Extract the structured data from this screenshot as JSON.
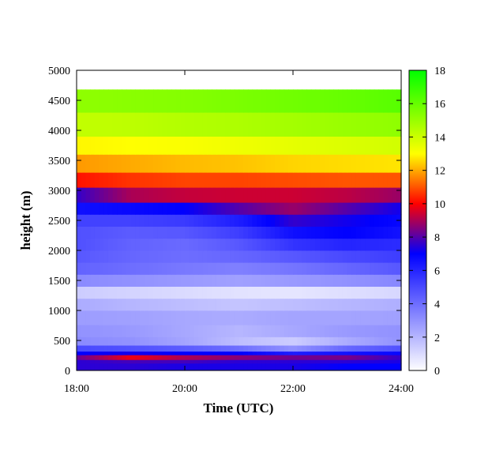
{
  "chart_data": {
    "type": "heatmap",
    "title": "",
    "xlabel": "Time (UTC)",
    "ylabel": "height (m)",
    "x_ticks": [
      "18:00",
      "20:00",
      "22:00",
      "24:00"
    ],
    "y_ticks": [
      "0",
      "500",
      "1000",
      "1500",
      "2000",
      "2500",
      "3000",
      "3500",
      "4000",
      "4500",
      "5000"
    ],
    "xlim": [
      "18:00",
      "24:00"
    ],
    "ylim": [
      0,
      5000
    ],
    "colorbar": {
      "range": [
        0,
        18
      ],
      "ticks": [
        "0",
        "2",
        "4",
        "6",
        "8",
        "10",
        "12",
        "14",
        "16",
        "18"
      ],
      "stops": [
        {
          "value": 0,
          "color": "#ffffff"
        },
        {
          "value": 7,
          "color": "#0000ff"
        },
        {
          "value": 10,
          "color": "#ff0000"
        },
        {
          "value": 13,
          "color": "#ffff00"
        },
        {
          "value": 18,
          "color": "#00ff00"
        }
      ]
    },
    "times": [
      "18:00",
      "19:00",
      "20:00",
      "21:00",
      "22:00",
      "23:00",
      "24:00"
    ],
    "layers": [
      {
        "height": [
          0,
          120
        ],
        "values": [
          7.5,
          7.5,
          7.3,
          7.3,
          7.3,
          7.0,
          7.0
        ]
      },
      {
        "height": [
          120,
          180
        ],
        "values": [
          7.5,
          7.8,
          7.8,
          7.5,
          7.5,
          7.5,
          7.3
        ]
      },
      {
        "height": [
          180,
          260
        ],
        "values": [
          8.2,
          9.8,
          9.0,
          8.6,
          8.3,
          8.4,
          7.6
        ]
      },
      {
        "height": [
          260,
          320
        ],
        "values": [
          7.0,
          7.2,
          7.0,
          7.0,
          6.2,
          6.5,
          6.8
        ]
      },
      {
        "height": [
          320,
          420
        ],
        "values": [
          5.0,
          4.8,
          4.5,
          4.0,
          3.0,
          4.2,
          4.8
        ]
      },
      {
        "height": [
          420,
          560
        ],
        "values": [
          3.2,
          3.0,
          2.5,
          1.8,
          1.4,
          2.3,
          3.0
        ]
      },
      {
        "height": [
          560,
          760
        ],
        "values": [
          3.0,
          2.8,
          2.4,
          2.0,
          2.4,
          2.8,
          3.0
        ]
      },
      {
        "height": [
          760,
          1000
        ],
        "values": [
          2.7,
          2.6,
          2.4,
          2.3,
          2.5,
          2.5,
          2.6
        ]
      },
      {
        "height": [
          1000,
          1200
        ],
        "values": [
          2.3,
          2.0,
          1.8,
          1.6,
          1.8,
          2.0,
          2.2
        ]
      },
      {
        "height": [
          1200,
          1400
        ],
        "values": [
          1.4,
          1.2,
          1.0,
          0.8,
          0.7,
          0.9,
          1.1
        ]
      },
      {
        "height": [
          1400,
          1600
        ],
        "values": [
          3.2,
          3.0,
          2.8,
          2.6,
          2.8,
          3.0,
          3.3
        ]
      },
      {
        "height": [
          1600,
          1800
        ],
        "values": [
          4.3,
          4.0,
          3.7,
          3.5,
          3.8,
          4.2,
          4.6
        ]
      },
      {
        "height": [
          1800,
          2000
        ],
        "values": [
          4.6,
          4.2,
          4.0,
          4.2,
          4.6,
          5.0,
          5.3
        ]
      },
      {
        "height": [
          2000,
          2200
        ],
        "values": [
          4.8,
          4.3,
          4.1,
          4.6,
          5.6,
          6.0,
          5.8
        ]
      },
      {
        "height": [
          2200,
          2400
        ],
        "values": [
          4.8,
          4.5,
          4.6,
          5.3,
          6.6,
          7.0,
          6.5
        ]
      },
      {
        "height": [
          2400,
          2600
        ],
        "values": [
          5.2,
          5.2,
          5.4,
          6.2,
          7.6,
          7.2,
          6.8
        ]
      },
      {
        "height": [
          2600,
          2800
        ],
        "values": [
          6.6,
          6.8,
          7.0,
          8.0,
          8.8,
          8.0,
          7.2
        ]
      },
      {
        "height": [
          2800,
          3050
        ],
        "values": [
          7.6,
          9.0,
          9.3,
          9.4,
          9.4,
          9.2,
          8.8
        ]
      },
      {
        "height": [
          3050,
          3300
        ],
        "values": [
          10.2,
          10.6,
          10.8,
          10.8,
          10.9,
          11.0,
          11.0
        ]
      },
      {
        "height": [
          3300,
          3600
        ],
        "values": [
          11.8,
          12.0,
          12.2,
          12.3,
          12.5,
          12.6,
          12.7
        ]
      },
      {
        "height": [
          3600,
          3900
        ],
        "values": [
          12.9,
          13.0,
          13.1,
          13.3,
          13.5,
          13.7,
          13.9
        ]
      },
      {
        "height": [
          3900,
          4300
        ],
        "values": [
          14.2,
          14.3,
          14.5,
          14.6,
          14.8,
          15.0,
          15.2
        ]
      },
      {
        "height": [
          4300,
          4680
        ],
        "values": [
          15.2,
          15.3,
          15.4,
          15.6,
          15.8,
          16.0,
          16.3
        ]
      }
    ],
    "grid": false,
    "legend": "colorbar-right"
  }
}
